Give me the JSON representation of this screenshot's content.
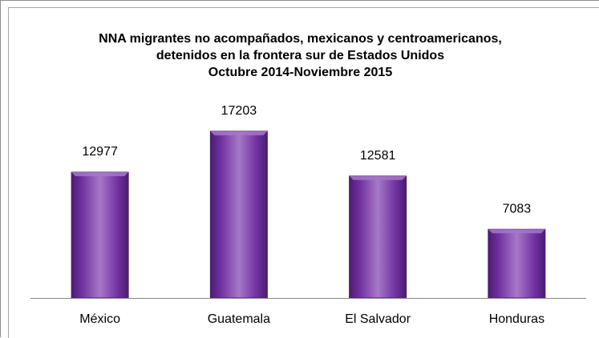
{
  "chart_data": {
    "type": "bar",
    "title": [
      "NNA migrantes no acompañados, mexicanos y centroamericanos,",
      "detenidos en la frontera sur de Estados Unidos",
      "Octubre 2014-Noviembre 2015"
    ],
    "categories": [
      "México",
      "Guatemala",
      "El Salvador",
      "Honduras"
    ],
    "values": [
      12977,
      17203,
      12581,
      7083
    ],
    "data_labels": [
      "12977",
      "17203",
      "12581",
      "7083"
    ],
    "xlabel": "",
    "ylabel": "",
    "ylim": [
      0,
      20000
    ],
    "grid": false,
    "legend": "none",
    "bar_color": "#7030a0",
    "bar_color_light": "#a578c8",
    "bar_color_dark": "#4b1d6e",
    "axis_color": "#868686"
  }
}
